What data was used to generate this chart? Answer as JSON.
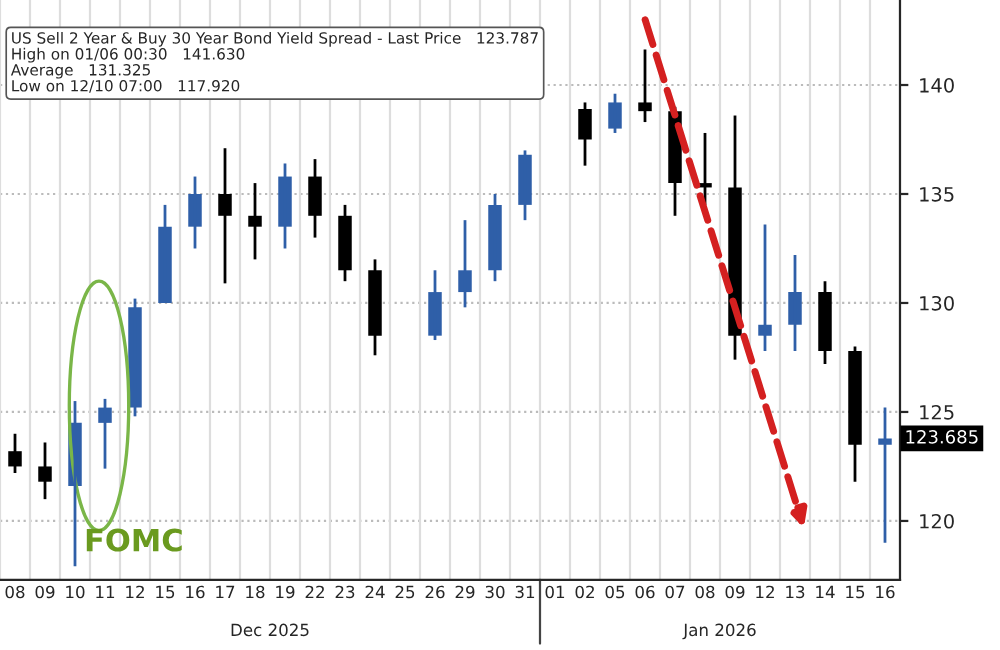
{
  "chart_data": {
    "type": "candlestick",
    "categories": [
      "08",
      "09",
      "10",
      "11",
      "12",
      "15",
      "16",
      "17",
      "18",
      "19",
      "22",
      "23",
      "24",
      "25",
      "26",
      "29",
      "30",
      "31",
      "01",
      "02",
      "05",
      "06",
      "07",
      "08",
      "09",
      "12",
      "13",
      "14",
      "15",
      "16"
    ],
    "ohlc": [
      [
        123.2,
        124,
        122.2,
        122.5
      ],
      [
        122.5,
        123.6,
        121,
        121.8
      ],
      [
        121.6,
        125.5,
        117.92,
        124.5
      ],
      [
        124.5,
        125.6,
        122.4,
        125.2
      ],
      [
        125.2,
        130.2,
        124.8,
        129.8
      ],
      [
        130,
        134.5,
        130,
        133.5
      ],
      [
        133.5,
        135.8,
        132.5,
        135
      ],
      [
        135,
        137.1,
        130.9,
        134
      ],
      [
        134,
        135.5,
        132,
        133.5
      ],
      [
        133.5,
        136.4,
        132.5,
        135.8
      ],
      [
        135.8,
        136.6,
        133,
        134
      ],
      [
        134,
        134.5,
        131,
        131.5
      ],
      [
        131.5,
        132,
        127.6,
        128.5
      ],
      null,
      [
        128.5,
        131.5,
        128.3,
        130.5
      ],
      [
        130.5,
        133.8,
        129.8,
        131.5
      ],
      [
        131.5,
        135,
        131,
        134.5
      ],
      [
        134.5,
        137,
        133.8,
        136.8
      ],
      null,
      [
        138.9,
        139.2,
        136.3,
        137.5
      ],
      [
        138,
        139.6,
        137.8,
        139.2
      ],
      [
        139.2,
        141.63,
        138.3,
        138.8
      ],
      [
        138.8,
        139,
        134,
        135.5
      ],
      [
        135.5,
        137.8,
        134.5,
        135.3
      ],
      [
        135.3,
        138.6,
        127.4,
        128.5
      ],
      [
        128.5,
        133.6,
        127.8,
        129
      ],
      [
        129,
        132.2,
        127.8,
        130.5
      ],
      [
        130.5,
        131,
        127.2,
        127.8
      ],
      [
        127.8,
        128,
        121.8,
        123.5
      ],
      [
        123.5,
        125.2,
        119,
        123.787
      ]
    ],
    "colors": [
      "#000000",
      "#000000",
      "#2f5fa8",
      "#2f5fa8",
      "#2f5fa8",
      "#2f5fa8",
      "#2f5fa8",
      "#000000",
      "#000000",
      "#2f5fa8",
      "#000000",
      "#000000",
      "#000000",
      null,
      "#2f5fa8",
      "#2f5fa8",
      "#2f5fa8",
      "#2f5fa8",
      null,
      "#000000",
      "#2f5fa8",
      "#000000",
      "#000000",
      "#000000",
      "#000000",
      "#2f5fa8",
      "#2f5fa8",
      "#000000",
      "#000000",
      "#2f5fa8"
    ],
    "ylim": [
      117.3,
      143.9
    ],
    "yticks": [
      120,
      125,
      130,
      135,
      140
    ],
    "grid": true,
    "annotations": [
      "US Sell 2 Year & Buy 30 Year Bond Yield Spread - Last Price   123.787",
      "High on 01/06 00:30   141.630",
      "Average   131.325",
      "Low on 12/10 07:00   117.920",
      "Dec 2025",
      "Jan 2026",
      {
        "text": "FOMC",
        "x": "10",
        "y": 119
      },
      "123.685"
    ]
  }
}
